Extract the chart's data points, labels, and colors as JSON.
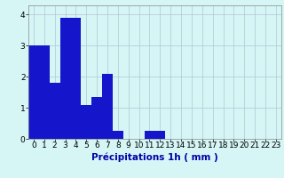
{
  "bar_values": [
    3,
    3,
    1.8,
    3.9,
    3.9,
    1.1,
    1.35,
    2.1,
    0.25,
    0,
    0,
    0.25,
    0.25,
    0,
    0,
    0,
    0,
    0,
    0,
    0,
    0,
    0,
    0,
    0
  ],
  "categories": [
    0,
    1,
    2,
    3,
    4,
    5,
    6,
    7,
    8,
    9,
    10,
    11,
    12,
    13,
    14,
    15,
    16,
    17,
    18,
    19,
    20,
    21,
    22,
    23
  ],
  "bar_color": "#1515cc",
  "background_color": "#d6f5f5",
  "grid_color": "#b0c8d8",
  "xlabel": "Précipitations 1h ( mm )",
  "ylim": [
    0,
    4.3
  ],
  "yticks": [
    0,
    1,
    2,
    3,
    4
  ],
  "xlabel_fontsize": 7.5,
  "tick_fontsize": 6.5
}
